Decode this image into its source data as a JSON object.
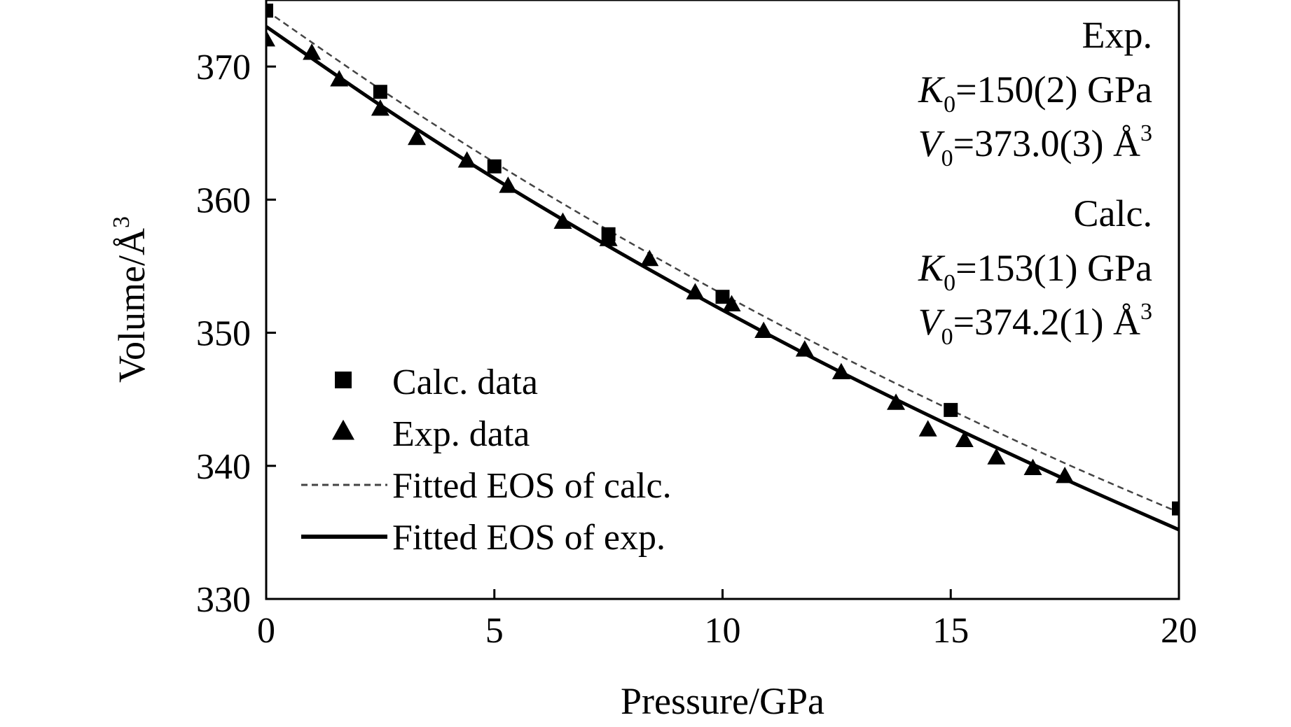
{
  "chart_data": {
    "type": "scatter",
    "title": "",
    "xlabel": "Pressure/GPa",
    "ylabel_base": "Volume/Å",
    "ylabel_sup": "3",
    "xlim": [
      0,
      20
    ],
    "ylim": [
      330,
      375
    ],
    "xticks": [
      0,
      5,
      10,
      15,
      20
    ],
    "yticks": [
      330,
      340,
      350,
      360,
      370
    ],
    "grid": false,
    "legend_position": "bottom-left",
    "series": [
      {
        "name": "Calc. data",
        "kind": "points",
        "marker": "square",
        "points": [
          [
            0,
            374.2
          ],
          [
            2.5,
            368.1
          ],
          [
            5.0,
            362.5
          ],
          [
            7.5,
            357.4
          ],
          [
            10.0,
            352.7
          ],
          [
            15.0,
            344.2
          ],
          [
            20.0,
            336.8
          ]
        ]
      },
      {
        "name": "Exp. data",
        "kind": "points",
        "marker": "triangle",
        "points": [
          [
            0,
            372.0
          ],
          [
            1.0,
            371.0
          ],
          [
            1.6,
            369.0
          ],
          [
            2.5,
            366.8
          ],
          [
            3.3,
            364.6
          ],
          [
            4.4,
            362.9
          ],
          [
            5.3,
            361.0
          ],
          [
            6.5,
            358.3
          ],
          [
            7.5,
            357.0
          ],
          [
            8.4,
            355.5
          ],
          [
            9.4,
            353.0
          ],
          [
            10.2,
            352.1
          ],
          [
            10.9,
            350.1
          ],
          [
            11.8,
            348.7
          ],
          [
            12.6,
            347.0
          ],
          [
            13.8,
            344.7
          ],
          [
            14.5,
            342.7
          ],
          [
            15.3,
            341.9
          ],
          [
            16.0,
            340.6
          ],
          [
            16.8,
            339.8
          ],
          [
            17.5,
            339.2
          ]
        ]
      },
      {
        "name": "Fitted EOS of calc.",
        "kind": "line",
        "style": "dashed",
        "points": [
          [
            0,
            374.2
          ],
          [
            2.5,
            368.3
          ],
          [
            5.0,
            362.8
          ],
          [
            7.5,
            357.7
          ],
          [
            10.0,
            352.9
          ],
          [
            12.5,
            348.4
          ],
          [
            15.0,
            344.2
          ],
          [
            17.5,
            340.2
          ],
          [
            20.0,
            336.5
          ]
        ]
      },
      {
        "name": "Fitted EOS of exp.",
        "kind": "line",
        "style": "solid",
        "points": [
          [
            0,
            373.0
          ],
          [
            2.5,
            367.1
          ],
          [
            5.0,
            361.6
          ],
          [
            7.5,
            356.5
          ],
          [
            10.0,
            351.7
          ],
          [
            12.5,
            347.2
          ],
          [
            15.0,
            343.0
          ],
          [
            17.5,
            339.0
          ],
          [
            20.0,
            335.2
          ]
        ]
      }
    ],
    "annotations": [
      {
        "kind": "heading",
        "text": "Exp."
      },
      {
        "kind": "param",
        "sym": "K",
        "sub": "0",
        "value": "=150(2) GPa",
        "sup": ""
      },
      {
        "kind": "param",
        "sym": "V",
        "sub": "0",
        "value": "=373.0(3) Å",
        "sup": "3"
      },
      {
        "kind": "heading",
        "text": "Calc."
      },
      {
        "kind": "param",
        "sym": "K",
        "sub": "0",
        "value": "=153(1) GPa",
        "sup": ""
      },
      {
        "kind": "param",
        "sym": "V",
        "sub": "0",
        "value": "=374.2(1) Å",
        "sup": "3"
      }
    ],
    "colors": {
      "ink": "#000000",
      "calc_line": "#444444"
    }
  }
}
